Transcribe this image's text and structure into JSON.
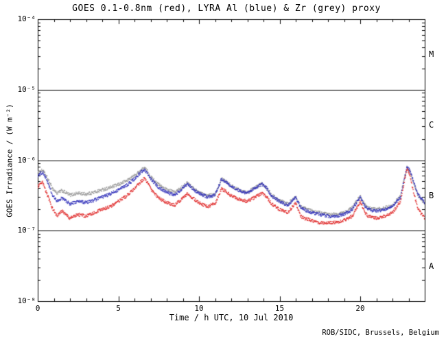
{
  "footer": "ROB/SIDC, Brussels, Belgium",
  "chart_data": {
    "type": "line",
    "title": "GOES 0.1-0.8nm (red), LYRA Al (blue) & Zr (grey) proxy",
    "xlabel": "Time / h UTC, 10 Jul 2010",
    "ylabel": "GOES Irradiance / (W m⁻²)",
    "x_range": [
      0,
      24
    ],
    "x_major_ticks": [
      0,
      5,
      10,
      15,
      20
    ],
    "x_minor_step": 1,
    "y_scale": "log",
    "y_range_exp": [
      -8,
      -4
    ],
    "y_ticks": [
      {
        "label": "10⁻⁸",
        "exp": -8
      },
      {
        "label": "10⁻⁷",
        "exp": -7
      },
      {
        "label": "10⁻⁶",
        "exp": -6
      },
      {
        "label": "10⁻⁵",
        "exp": -5
      },
      {
        "label": "10⁻⁴",
        "exp": -4
      }
    ],
    "hlines_exp": [
      -7,
      -6,
      -5
    ],
    "flare_classes": [
      {
        "label": "M",
        "between_exp": [
          -5,
          -4
        ]
      },
      {
        "label": "C",
        "between_exp": [
          -6,
          -5
        ]
      },
      {
        "label": "B",
        "between_exp": [
          -7,
          -6
        ]
      },
      {
        "label": "A",
        "between_exp": [
          -8,
          -7
        ]
      }
    ],
    "grid": false,
    "series": [
      {
        "name": "LYRA Zr proxy",
        "color": "#999999",
        "points": [
          [
            0,
            6.6e-07
          ],
          [
            0.3,
            7.2e-07
          ],
          [
            0.6,
            5.6e-07
          ],
          [
            0.9,
            4e-07
          ],
          [
            1.2,
            3.4e-07
          ],
          [
            1.5,
            3.7e-07
          ],
          [
            2,
            3.2e-07
          ],
          [
            2.5,
            3.4e-07
          ],
          [
            3,
            3.3e-07
          ],
          [
            3.5,
            3.5e-07
          ],
          [
            4,
            3.8e-07
          ],
          [
            4.5,
            4.1e-07
          ],
          [
            5,
            4.5e-07
          ],
          [
            5.5,
            5.1e-07
          ],
          [
            6,
            6e-07
          ],
          [
            6.3,
            6.9e-07
          ],
          [
            6.6,
            7.8e-07
          ],
          [
            6.8,
            7e-07
          ],
          [
            7,
            5.8e-07
          ],
          [
            7.5,
            4.5e-07
          ],
          [
            8,
            3.8e-07
          ],
          [
            8.5,
            3.5e-07
          ],
          [
            9,
            4.2e-07
          ],
          [
            9.3,
            4.8e-07
          ],
          [
            9.6,
            4.1e-07
          ],
          [
            10,
            3.5e-07
          ],
          [
            10.5,
            3.1e-07
          ],
          [
            11,
            3.3e-07
          ],
          [
            11.4,
            5.5e-07
          ],
          [
            11.7,
            5e-07
          ],
          [
            12,
            4.3e-07
          ],
          [
            12.5,
            3.8e-07
          ],
          [
            13,
            3.5e-07
          ],
          [
            13.5,
            4.1e-07
          ],
          [
            13.9,
            4.7e-07
          ],
          [
            14.2,
            4.1e-07
          ],
          [
            14.5,
            3.2e-07
          ],
          [
            15,
            2.7e-07
          ],
          [
            15.5,
            2.4e-07
          ],
          [
            16,
            3e-07
          ],
          [
            16.3,
            2.2e-07
          ],
          [
            16.5,
            2.1e-07
          ],
          [
            17,
            1.9e-07
          ],
          [
            17.5,
            1.8e-07
          ],
          [
            18,
            1.7e-07
          ],
          [
            18.5,
            1.7e-07
          ],
          [
            19,
            1.8e-07
          ],
          [
            19.5,
            2.1e-07
          ],
          [
            20,
            3.1e-07
          ],
          [
            20.3,
            2.3e-07
          ],
          [
            20.5,
            2.1e-07
          ],
          [
            21,
            2e-07
          ],
          [
            21.5,
            2.1e-07
          ],
          [
            22,
            2.3e-07
          ],
          [
            22.5,
            3.1e-07
          ],
          [
            22.7,
            5.1e-07
          ],
          [
            22.9,
            7.8e-07
          ],
          [
            23.1,
            6.8e-07
          ],
          [
            23.3,
            4.8e-07
          ],
          [
            23.6,
            3.1e-07
          ],
          [
            24,
            2.4e-07
          ]
        ]
      },
      {
        "name": "LYRA Al proxy",
        "color": "#3434bb",
        "points": [
          [
            0,
            6e-07
          ],
          [
            0.3,
            6.8e-07
          ],
          [
            0.6,
            5e-07
          ],
          [
            0.9,
            3.2e-07
          ],
          [
            1.2,
            2.6e-07
          ],
          [
            1.5,
            2.9e-07
          ],
          [
            2,
            2.4e-07
          ],
          [
            2.5,
            2.6e-07
          ],
          [
            3,
            2.5e-07
          ],
          [
            3.5,
            2.7e-07
          ],
          [
            4,
            3e-07
          ],
          [
            4.5,
            3.3e-07
          ],
          [
            5,
            3.8e-07
          ],
          [
            5.5,
            4.4e-07
          ],
          [
            6,
            5.4e-07
          ],
          [
            6.3,
            6.4e-07
          ],
          [
            6.6,
            7.4e-07
          ],
          [
            6.8,
            6.6e-07
          ],
          [
            7,
            5.4e-07
          ],
          [
            7.5,
            4.1e-07
          ],
          [
            8,
            3.5e-07
          ],
          [
            8.5,
            3.2e-07
          ],
          [
            9,
            4e-07
          ],
          [
            9.3,
            4.6e-07
          ],
          [
            9.6,
            3.9e-07
          ],
          [
            10,
            3.4e-07
          ],
          [
            10.5,
            3e-07
          ],
          [
            11,
            3.2e-07
          ],
          [
            11.4,
            5.4e-07
          ],
          [
            11.7,
            4.9e-07
          ],
          [
            12,
            4.2e-07
          ],
          [
            12.5,
            3.7e-07
          ],
          [
            13,
            3.4e-07
          ],
          [
            13.5,
            4e-07
          ],
          [
            13.9,
            4.6e-07
          ],
          [
            14.2,
            4e-07
          ],
          [
            14.5,
            3.1e-07
          ],
          [
            15,
            2.6e-07
          ],
          [
            15.5,
            2.3e-07
          ],
          [
            16,
            3e-07
          ],
          [
            16.3,
            2.1e-07
          ],
          [
            16.5,
            2e-07
          ],
          [
            17,
            1.8e-07
          ],
          [
            17.5,
            1.7e-07
          ],
          [
            18,
            1.6e-07
          ],
          [
            18.5,
            1.6e-07
          ],
          [
            19,
            1.7e-07
          ],
          [
            19.5,
            2e-07
          ],
          [
            20,
            3e-07
          ],
          [
            20.3,
            2.2e-07
          ],
          [
            20.5,
            2e-07
          ],
          [
            21,
            1.9e-07
          ],
          [
            21.5,
            2e-07
          ],
          [
            22,
            2.2e-07
          ],
          [
            22.5,
            3e-07
          ],
          [
            22.7,
            5e-07
          ],
          [
            22.9,
            8e-07
          ],
          [
            23.1,
            7e-07
          ],
          [
            23.3,
            5e-07
          ],
          [
            23.6,
            3.2e-07
          ],
          [
            24,
            2.5e-07
          ]
        ]
      },
      {
        "name": "GOES 0.1-0.8nm",
        "color": "#e03030",
        "points": [
          [
            0,
            4.2e-07
          ],
          [
            0.3,
            4.8e-07
          ],
          [
            0.6,
            3.2e-07
          ],
          [
            0.9,
            2.1e-07
          ],
          [
            1.2,
            1.6e-07
          ],
          [
            1.5,
            1.9e-07
          ],
          [
            2,
            1.5e-07
          ],
          [
            2.5,
            1.7e-07
          ],
          [
            3,
            1.6e-07
          ],
          [
            3.5,
            1.8e-07
          ],
          [
            4,
            2e-07
          ],
          [
            4.5,
            2.2e-07
          ],
          [
            5,
            2.6e-07
          ],
          [
            5.5,
            3.1e-07
          ],
          [
            6,
            3.9e-07
          ],
          [
            6.3,
            4.7e-07
          ],
          [
            6.6,
            5.5e-07
          ],
          [
            6.8,
            4.9e-07
          ],
          [
            7,
            3.9e-07
          ],
          [
            7.5,
            2.9e-07
          ],
          [
            8,
            2.5e-07
          ],
          [
            8.5,
            2.3e-07
          ],
          [
            9,
            2.9e-07
          ],
          [
            9.3,
            3.4e-07
          ],
          [
            9.6,
            2.9e-07
          ],
          [
            10,
            2.5e-07
          ],
          [
            10.5,
            2.2e-07
          ],
          [
            11,
            2.4e-07
          ],
          [
            11.4,
            3.9e-07
          ],
          [
            11.7,
            3.6e-07
          ],
          [
            12,
            3.1e-07
          ],
          [
            12.5,
            2.8e-07
          ],
          [
            13,
            2.6e-07
          ],
          [
            13.5,
            3e-07
          ],
          [
            13.9,
            3.4e-07
          ],
          [
            14.2,
            3e-07
          ],
          [
            14.5,
            2.4e-07
          ],
          [
            15,
            2e-07
          ],
          [
            15.5,
            1.8e-07
          ],
          [
            16,
            2.5e-07
          ],
          [
            16.3,
            1.6e-07
          ],
          [
            16.5,
            1.5e-07
          ],
          [
            17,
            1.4e-07
          ],
          [
            17.5,
            1.3e-07
          ],
          [
            18,
            1.3e-07
          ],
          [
            18.5,
            1.3e-07
          ],
          [
            19,
            1.4e-07
          ],
          [
            19.5,
            1.6e-07
          ],
          [
            20,
            2.6e-07
          ],
          [
            20.3,
            1.8e-07
          ],
          [
            20.5,
            1.6e-07
          ],
          [
            21,
            1.5e-07
          ],
          [
            21.5,
            1.6e-07
          ],
          [
            22,
            1.8e-07
          ],
          [
            22.5,
            2.6e-07
          ],
          [
            22.7,
            4.5e-07
          ],
          [
            22.9,
            7.5e-07
          ],
          [
            23.1,
            6e-07
          ],
          [
            23.3,
            3.5e-07
          ],
          [
            23.6,
            2e-07
          ],
          [
            24,
            1.5e-07
          ]
        ]
      }
    ]
  }
}
